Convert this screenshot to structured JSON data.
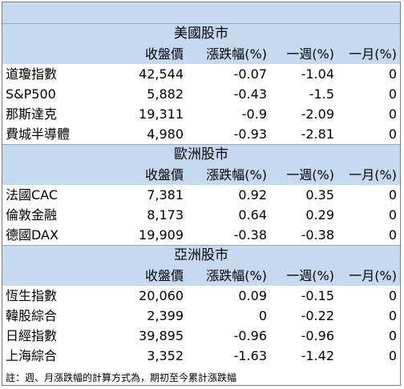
{
  "sections": [
    {
      "title": "美國股市",
      "headers": [
        "收盤價",
        "漲跌幅(%)",
        "一週(%)",
        "一月(%)"
      ],
      "rows": [
        {
          "name": "道瓊指數",
          "close": "42,544",
          "change": "-0.07",
          "week": "-1.04",
          "month": "0"
        },
        {
          "name": "S&P500",
          "close": "5,882",
          "change": "-0.43",
          "week": "-1.5",
          "month": "0"
        },
        {
          "name": "那斯達克",
          "close": "19,311",
          "change": "-0.9",
          "week": "-2.09",
          "month": "0"
        },
        {
          "name": "費城半導體",
          "close": "4,980",
          "change": "-0.93",
          "week": "-2.81",
          "month": "0"
        }
      ]
    },
    {
      "title": "歐洲股市",
      "headers": [
        "收盤價",
        "漲跌幅(%)",
        "一週(%)",
        "一月(%)"
      ],
      "rows": [
        {
          "name": "法國CAC",
          "close": "7,381",
          "change": "0.92",
          "week": "0.35",
          "month": "0"
        },
        {
          "name": "倫敦金融",
          "close": "8,173",
          "change": "0.64",
          "week": "0.29",
          "month": "0"
        },
        {
          "name": "德國DAX",
          "close": "19,909",
          "change": "-0.38",
          "week": "-0.38",
          "month": "0"
        }
      ]
    },
    {
      "title": "亞洲股市",
      "headers": [
        "收盤價",
        "漲跌幅(%)",
        "一週(%)",
        "一月(%)"
      ],
      "rows": [
        {
          "name": "恆生指數",
          "close": "20,060",
          "change": "0.09",
          "week": "-0.15",
          "month": "0"
        },
        {
          "name": "韓股綜合",
          "close": "2,399",
          "change": "0",
          "week": "-0.22",
          "month": "0"
        },
        {
          "name": "日經指數",
          "close": "39,895",
          "change": "-0.96",
          "week": "-0.96",
          "month": "0"
        },
        {
          "name": "上海綜合",
          "close": "3,352",
          "change": "-1.63",
          "week": "-1.42",
          "month": "0"
        }
      ]
    }
  ],
  "note": "註：週、月漲跌幅的計算方式為，期初至今累計漲跌幅",
  "colors": {
    "header_bg": "#c5d9f1",
    "row_bg": "#ffffff",
    "border": "#7a7a7a"
  }
}
